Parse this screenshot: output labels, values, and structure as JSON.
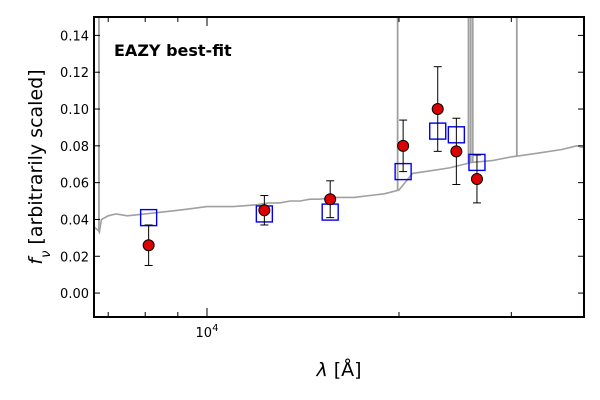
{
  "chart_data": {
    "type": "scatter",
    "annotation": "EAZY best-fit",
    "annotation_color": "#ff0000",
    "ylabel_math": {
      "sym": "f",
      "sub": "ν",
      "text": " [arbitrarily scaled]"
    },
    "xlabel_math": {
      "sym": "λ",
      "text": " [Å]"
    },
    "x_scale": "log",
    "x_tick_label": {
      "base": "10",
      "exp": "4"
    },
    "xlim": [
      6650,
      39000
    ],
    "ylim": [
      -0.013,
      0.15
    ],
    "yticks": [
      "0.00",
      "0.02",
      "0.04",
      "0.06",
      "0.08",
      "0.10",
      "0.12",
      "0.14"
    ],
    "grid": false,
    "colors": {
      "template": "#a0a0a0",
      "model_box": "#0000ee",
      "observed_point": "#dd0000",
      "errorbar": "#000000"
    },
    "template_sed": {
      "name": "best-fit template",
      "x": [
        6650,
        6700,
        6760,
        6780,
        6830,
        7000,
        7200,
        7500,
        8000,
        8500,
        9000,
        9500,
        10000,
        11000,
        12000,
        12500,
        13000,
        13500,
        14000,
        14500,
        15000,
        16000,
        17000,
        18000,
        19000,
        20000,
        21000,
        22000,
        24000,
        26000,
        28000,
        30000,
        33000,
        36000,
        38000,
        39000
      ],
      "y": [
        0.036,
        0.035,
        0.034,
        0.033,
        0.04,
        0.042,
        0.043,
        0.042,
        0.043,
        0.044,
        0.045,
        0.046,
        0.047,
        0.047,
        0.048,
        0.049,
        0.049,
        0.05,
        0.05,
        0.051,
        0.051,
        0.052,
        0.052,
        0.053,
        0.054,
        0.056,
        0.065,
        0.066,
        0.068,
        0.071,
        0.072,
        0.074,
        0.076,
        0.078,
        0.08,
        0.079
      ]
    },
    "template_emission_lines": [
      {
        "x": 6770,
        "peak": 0.15
      },
      {
        "x": 19900,
        "peak": 0.15
      },
      {
        "x": 25700,
        "peak": 0.15
      },
      {
        "x": 25900,
        "peak": 0.15
      },
      {
        "x": 26100,
        "peak": 0.15
      },
      {
        "x": 30600,
        "peak": 0.15
      }
    ],
    "model_photometry": {
      "name": "model fluxes",
      "x": [
        8100,
        12300,
        15600,
        20300,
        23000,
        24600,
        26500
      ],
      "y": [
        0.041,
        0.043,
        0.044,
        0.066,
        0.088,
        0.086,
        0.071
      ]
    },
    "observed_photometry": {
      "name": "observed fluxes",
      "x": [
        8100,
        12300,
        15600,
        20300,
        23000,
        24600,
        26500
      ],
      "y": [
        0.026,
        0.045,
        0.051,
        0.08,
        0.1,
        0.077,
        0.062
      ],
      "yerr": [
        0.011,
        0.008,
        0.01,
        0.014,
        0.023,
        0.018,
        0.013
      ]
    }
  }
}
